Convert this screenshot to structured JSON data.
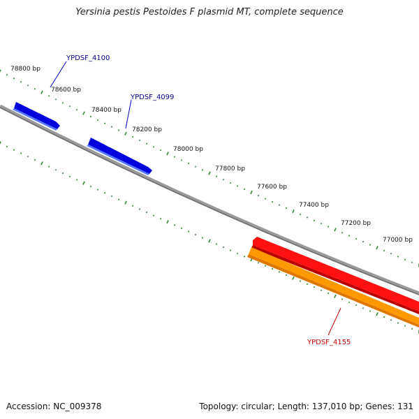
{
  "title": "Yersinia pestis Pestoides F plasmid MT, complete sequence",
  "footer": {
    "accession": "Accession: NC_009378",
    "summary": "Topology: circular; Length: 137,010 bp; Genes: 131"
  },
  "ruler_labels": [
    "78800 bp",
    "78600 bp",
    "78400 bp",
    "78200 bp",
    "78000 bp",
    "77800 bp",
    "77600 bp",
    "77400 bp",
    "77200 bp",
    "77000 bp"
  ],
  "genes": [
    {
      "name": "YPDSF_4100",
      "strand": "forward",
      "color": "#0000ff"
    },
    {
      "name": "YPDSF_4099",
      "strand": "forward",
      "color": "#0000ff"
    },
    {
      "name": "YPDSF_4155",
      "strand": "reverse",
      "color": "#ff0000"
    }
  ],
  "colors": {
    "backbone": "#808080",
    "ticks": "#2e8b2e",
    "forward_gene": "#0000ff",
    "reverse_gene": "#ff0000",
    "reverse_cds": "#ff9900",
    "forward_label": "#00008b",
    "reverse_label": "#cc0000"
  }
}
